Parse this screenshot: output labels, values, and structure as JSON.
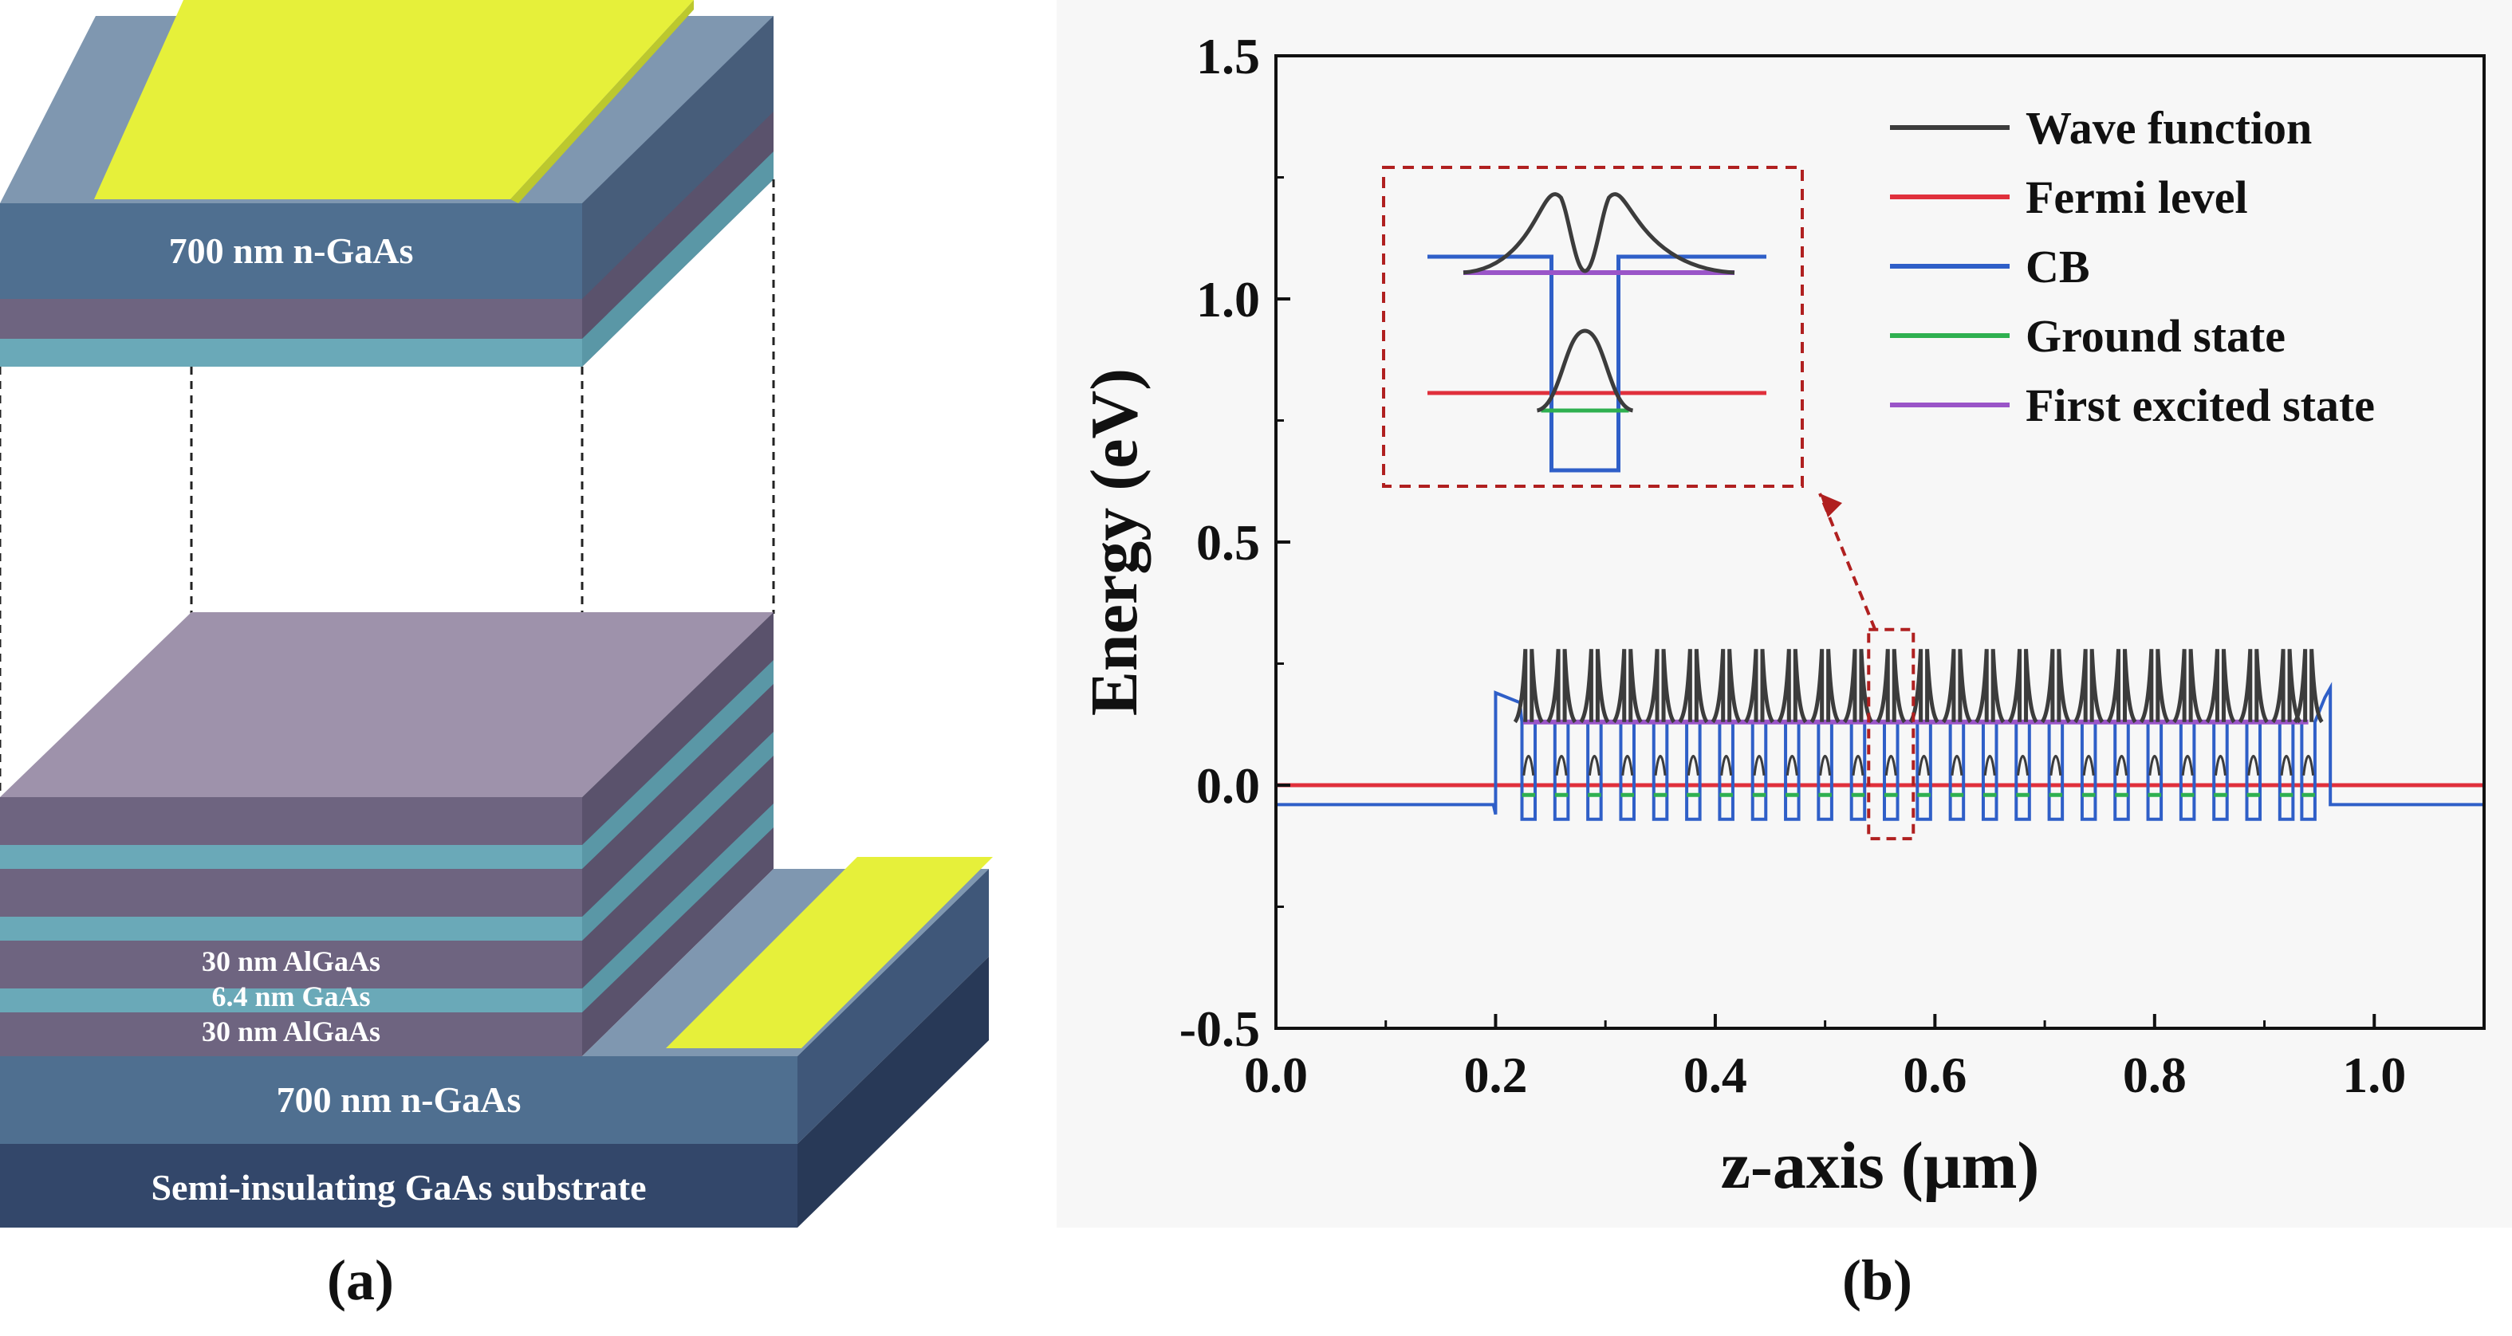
{
  "panel_a": {
    "caption": "(a)",
    "top_layer_label": "700 nm n-GaAs",
    "stack_labels": [
      "30 nm AlGaAs",
      "6.4 nm GaAs",
      "30 nm AlGaAs"
    ],
    "bottom_layer_label": "700 nm n-GaAs",
    "substrate_label": "Semi-insulating GaAs substrate",
    "colors": {
      "ngaas": "#4f6f90",
      "algaas": "#6e6480",
      "gaas": "#6aa9b8",
      "substrate": "#33476a",
      "contact": "#e6f03a"
    }
  },
  "panel_b": {
    "caption": "(b)"
  },
  "chart_data": {
    "type": "line",
    "xlabel": "z-axis (μm)",
    "ylabel": "Energy (eV)",
    "xlim": [
      0.0,
      1.1
    ],
    "ylim": [
      -0.5,
      1.5
    ],
    "xticks": [
      "0.0",
      "0.2",
      "0.4",
      "0.6",
      "0.8",
      "1.0"
    ],
    "yticks": [
      "-0.5",
      "0.0",
      "0.5",
      "1.0",
      "1.5"
    ],
    "series": [
      {
        "name": "Wave function",
        "color": "#3c3c3c",
        "peak_energy": 0.28,
        "base_energy": 0.13
      },
      {
        "name": "Fermi level",
        "color": "#e0303c",
        "energy": 0.0
      },
      {
        "name": "CB",
        "color": "#2f5fc8",
        "barrier_energy": 0.13,
        "well_bottom": -0.07,
        "outside_energy": -0.04,
        "ramp_left": 0.19,
        "ramp_right": 0.2
      },
      {
        "name": "Ground state",
        "color": "#2fb050",
        "energy": -0.02
      },
      {
        "name": "First excited state",
        "color": "#9a55c8",
        "energy": 0.13
      }
    ],
    "active_region": [
      0.2,
      0.96
    ],
    "well_positions": [
      0.23,
      0.26,
      0.29,
      0.32,
      0.35,
      0.38,
      0.41,
      0.44,
      0.47,
      0.5,
      0.53,
      0.56,
      0.59,
      0.62,
      0.65,
      0.68,
      0.71,
      0.74,
      0.77,
      0.8,
      0.83,
      0.86,
      0.89,
      0.92,
      0.94
    ],
    "highlighted_well": 0.56,
    "inset": "zoomed view of a single quantum well"
  }
}
